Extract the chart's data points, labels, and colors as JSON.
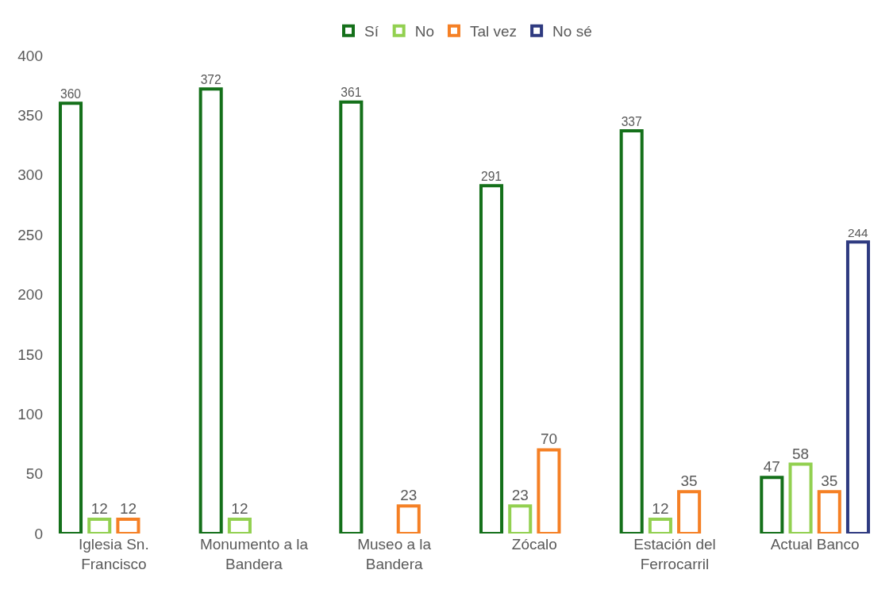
{
  "chart_data": {
    "type": "bar",
    "categories": [
      "Iglesia Sn. Francisco",
      "Monumento a la Bandera",
      "Museo a la Bandera",
      "Zócalo",
      "Estación del Ferrocarril",
      "Actual Banco"
    ],
    "series": [
      {
        "name": "Sí",
        "color": "#14701a",
        "values": [
          360,
          372,
          361,
          291,
          337,
          47
        ]
      },
      {
        "name": "No",
        "color": "#92d050",
        "values": [
          12,
          12,
          null,
          23,
          12,
          58
        ]
      },
      {
        "name": "Tal vez",
        "color": "#f58025",
        "values": [
          12,
          null,
          23,
          70,
          35,
          35
        ]
      },
      {
        "name": "No sé",
        "color": "#2e3a80",
        "values": [
          null,
          null,
          null,
          null,
          null,
          244
        ]
      }
    ],
    "ylim": [
      0,
      400
    ],
    "yticks": [
      0,
      50,
      100,
      150,
      200,
      250,
      300,
      350,
      400
    ],
    "grid": false,
    "legend": "top",
    "data_labels": true
  }
}
